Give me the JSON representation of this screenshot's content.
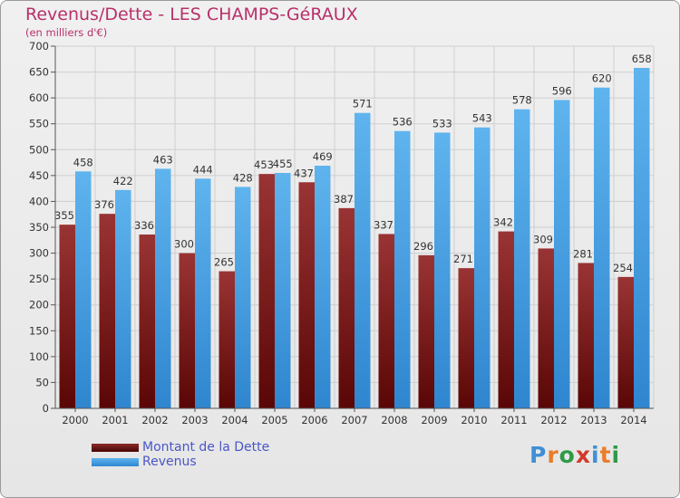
{
  "chart_data": {
    "type": "bar",
    "title": "Revenus/Dette - LES CHAMPS-GéRAUX",
    "subtitle": "(en milliers d'€)",
    "categories": [
      "2000",
      "2001",
      "2002",
      "2003",
      "2004",
      "2005",
      "2006",
      "2007",
      "2008",
      "2009",
      "2010",
      "2011",
      "2012",
      "2013",
      "2014"
    ],
    "series": [
      {
        "name": "Montant de la Dette",
        "color": "#7a1a1a",
        "values": [
          355,
          376,
          336,
          300,
          265,
          453,
          437,
          387,
          337,
          296,
          271,
          342,
          309,
          281,
          254
        ]
      },
      {
        "name": "Revenus",
        "color": "#4aa3e6",
        "values": [
          458,
          422,
          463,
          444,
          428,
          455,
          469,
          571,
          536,
          533,
          543,
          578,
          596,
          620,
          658
        ]
      }
    ],
    "ylim": [
      0,
      700
    ],
    "yticks": [
      0,
      50,
      100,
      150,
      200,
      250,
      300,
      350,
      400,
      450,
      500,
      550,
      600,
      650,
      700
    ],
    "grid": true,
    "legend_position": "bottom-left"
  },
  "logo": {
    "text": "Proxiti",
    "letters": [
      "P",
      "r",
      "o",
      "x",
      "i",
      "t",
      "i"
    ],
    "colors": [
      "#3f8fd6",
      "#e87d2a",
      "#2e9a46",
      "#d23a2a",
      "#3f8fd6",
      "#e87d2a",
      "#2e9a46"
    ]
  }
}
